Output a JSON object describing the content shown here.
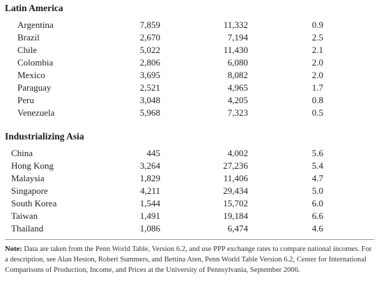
{
  "sections": [
    {
      "title": "Latin America",
      "rows": [
        {
          "country": "Argentina",
          "v1": "7,859",
          "v2": "11,332",
          "v3": "0.9"
        },
        {
          "country": "Brazil",
          "v1": "2,670",
          "v2": "7,194",
          "v3": "2.5"
        },
        {
          "country": "Chile",
          "v1": "5,022",
          "v2": "11,430",
          "v3": "2.1"
        },
        {
          "country": "Colombia",
          "v1": "2,806",
          "v2": "6,080",
          "v3": "2.0"
        },
        {
          "country": "Mexico",
          "v1": "3,695",
          "v2": "8,082",
          "v3": "2.0"
        },
        {
          "country": "Paraguay",
          "v1": "2,521",
          "v2": "4,965",
          "v3": "1.7"
        },
        {
          "country": "Peru",
          "v1": "3,048",
          "v2": "4,205",
          "v3": "0.8"
        },
        {
          "country": "Venezuela",
          "v1": "5,968",
          "v2": "7,323",
          "v3": "0.5"
        }
      ]
    },
    {
      "title": "Industrializing Asia",
      "rows": [
        {
          "country": "China",
          "v1": "445",
          "v2": "4,002",
          "v3": "5.6"
        },
        {
          "country": "Hong Kong",
          "v1": "3,264",
          "v2": "27,236",
          "v3": "5.4"
        },
        {
          "country": "Malaysia",
          "v1": "1,829",
          "v2": "11,406",
          "v3": "4.7"
        },
        {
          "country": "Singapore",
          "v1": "4,211",
          "v2": "29,434",
          "v3": "5.0"
        },
        {
          "country": "South Korea",
          "v1": "1,544",
          "v2": "15,702",
          "v3": "6.0"
        },
        {
          "country": "Taiwan",
          "v1": "1,491",
          "v2": "19,184",
          "v3": "6.6"
        },
        {
          "country": "Thailand",
          "v1": "1,086",
          "v2": "6,474",
          "v3": "4.6"
        }
      ]
    }
  ],
  "note": {
    "label": "Note:",
    "text": " Data are taken from the Penn World Table, Version 6.2, and use PPP exchange rates to compare national incomes. For a description, see Alan Heston, Robert Summers, and Bettina Aten, Penn World Table Version 6.2, Center for International Comparisons of Production, Income, and Prices at the University of Pennsylvania, September 2006."
  }
}
